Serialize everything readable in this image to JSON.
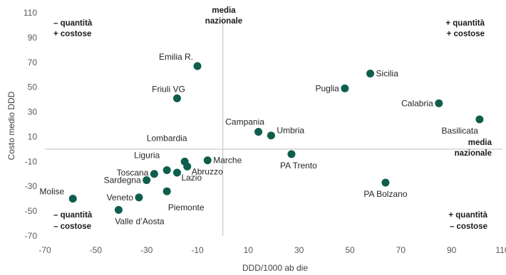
{
  "chart_data": {
    "type": "scatter",
    "xlabel": "DDD/1000 ab die",
    "ylabel": "Costo medio DDD",
    "xlim": [
      -70,
      110
    ],
    "ylim": [
      -70,
      110
    ],
    "x_ticks": [
      -70,
      -50,
      -30,
      -10,
      10,
      30,
      50,
      70,
      90,
      110
    ],
    "y_ticks": [
      110,
      90,
      70,
      50,
      30,
      10,
      -10,
      -30,
      -50,
      -70
    ],
    "x_tick_labels": [
      "-70",
      "-50",
      "-30",
      "-10",
      "10",
      "30",
      "50",
      "70",
      "90",
      "110"
    ],
    "y_tick_labels": [
      "110",
      "90",
      "70",
      "50",
      "30",
      "10",
      "-10",
      "-30",
      "-50",
      "-70"
    ],
    "reference_lines": {
      "x": 0,
      "y": 0
    },
    "media_label_top": [
      "media",
      "nazionale"
    ],
    "media_label_right": [
      "media",
      "nazionale"
    ],
    "quadrant_labels": {
      "top_left": [
        "– quantità",
        "+ costose"
      ],
      "top_right": [
        "+ quantità",
        "+ costose"
      ],
      "bottom_left": [
        "– quantità",
        "– costose"
      ],
      "bottom_right": [
        "+ quantità",
        "– costose"
      ]
    },
    "color": "#0e5e4e",
    "points": [
      {
        "label": "Emilia R.",
        "x": -10,
        "y": 67
      },
      {
        "label": "Friuli VG",
        "x": -18,
        "y": 41
      },
      {
        "label": "Sicilia",
        "x": 58,
        "y": 61
      },
      {
        "label": "Puglia",
        "x": 48,
        "y": 49
      },
      {
        "label": "Calabria",
        "x": 85,
        "y": 37
      },
      {
        "label": "Basilicata",
        "x": 101,
        "y": 24
      },
      {
        "label": "Campania",
        "x": 14,
        "y": 14
      },
      {
        "label": "Umbria",
        "x": 19,
        "y": 11
      },
      {
        "label": "Lombardia",
        "x": -15,
        "y": -10
      },
      {
        "label": "Marche",
        "x": -6,
        "y": -9
      },
      {
        "label": "Abruzzo",
        "x": -14,
        "y": -14
      },
      {
        "label": "Liguria",
        "x": -22,
        "y": -17
      },
      {
        "label": "Lazio",
        "x": -18,
        "y": -19
      },
      {
        "label": "Toscana",
        "x": -27,
        "y": -20
      },
      {
        "label": "Sardegna",
        "x": -30,
        "y": -25
      },
      {
        "label": "Piemonte",
        "x": -22,
        "y": -34
      },
      {
        "label": "Veneto",
        "x": -33,
        "y": -39
      },
      {
        "label": "Molise",
        "x": -59,
        "y": -40
      },
      {
        "label": "Valle d’Aosta",
        "x": -41,
        "y": -49
      },
      {
        "label": "PA Trento",
        "x": 27,
        "y": -4
      },
      {
        "label": "PA Bolzano",
        "x": 64,
        "y": -27
      }
    ]
  }
}
